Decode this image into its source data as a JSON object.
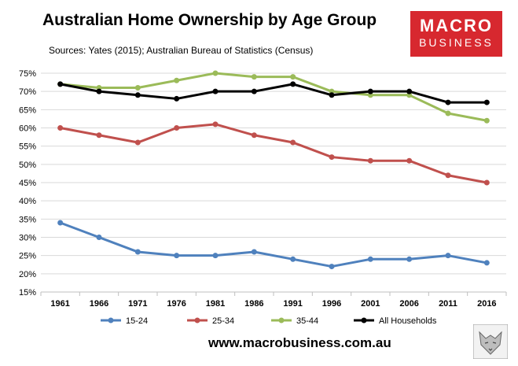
{
  "title": "Australian Home Ownership by Age Group",
  "subtitle": "Sources: Yates (2015); Australian Bureau of Statistics (Census)",
  "brand": {
    "line1": "MACRO",
    "line2": "BUSINESS"
  },
  "url": "www.macrobusiness.com.au",
  "chart_data": {
    "type": "line",
    "title": "Australian Home Ownership by Age Group",
    "xlabel": "",
    "ylabel": "",
    "categories": [
      "1961",
      "1966",
      "1971",
      "1976",
      "1981",
      "1986",
      "1991",
      "1996",
      "2001",
      "2006",
      "2011",
      "2016"
    ],
    "ylim": [
      15,
      75
    ],
    "yticks": [
      "15%",
      "20%",
      "25%",
      "30%",
      "35%",
      "40%",
      "45%",
      "50%",
      "55%",
      "60%",
      "65%",
      "70%",
      "75%"
    ],
    "grid": true,
    "legend": "bottom",
    "series": [
      {
        "name": "15-24",
        "color": "#4f81bd",
        "values": [
          34,
          30,
          26,
          25,
          25,
          26,
          24,
          22,
          24,
          24,
          25,
          23
        ]
      },
      {
        "name": "25-34",
        "color": "#c0504d",
        "values": [
          60,
          58,
          56,
          60,
          61,
          58,
          56,
          52,
          51,
          51,
          47,
          45
        ]
      },
      {
        "name": "35-44",
        "color": "#9bbb59",
        "values": [
          72,
          71,
          71,
          73,
          75,
          74,
          74,
          70,
          69,
          69,
          64,
          62
        ]
      },
      {
        "name": "All Households",
        "color": "#000000",
        "values": [
          72,
          70,
          69,
          68,
          70,
          70,
          72,
          69,
          70,
          70,
          67,
          67
        ]
      }
    ]
  }
}
